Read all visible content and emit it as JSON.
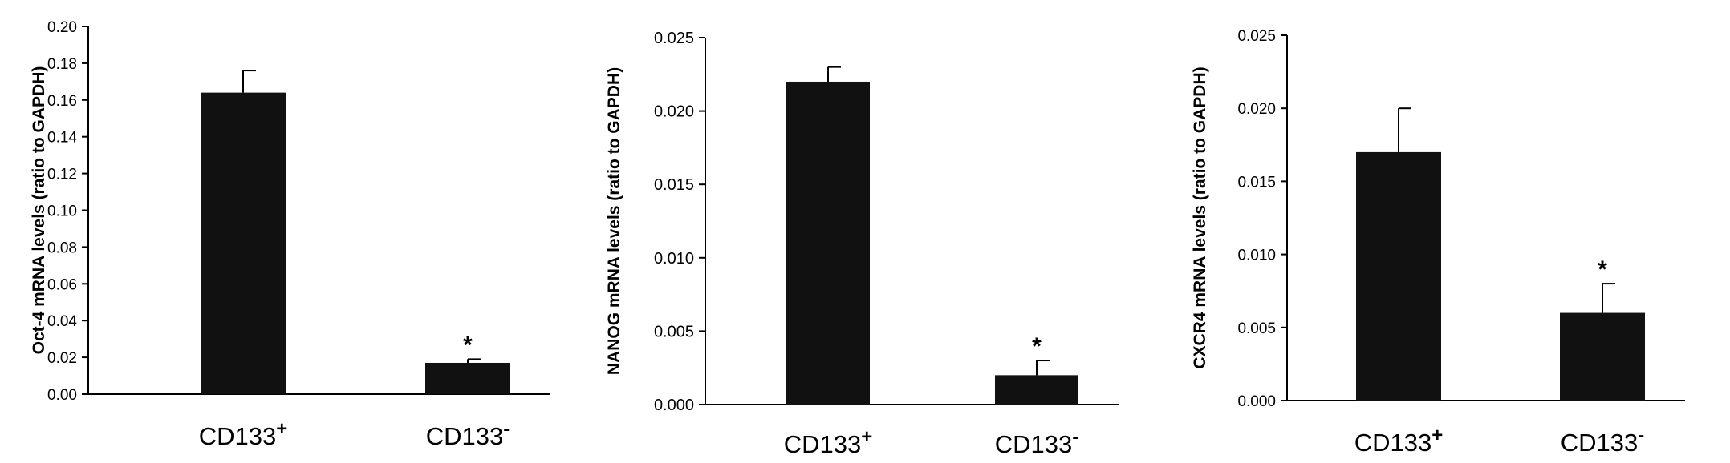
{
  "chart_data": [
    {
      "type": "bar",
      "ylabel": "Oct-4 mRNA levels  (ratio to GAPDH)",
      "ylim": [
        0,
        0.2
      ],
      "yticks": [
        "0.00",
        "0.02",
        "0.04",
        "0.06",
        "0.08",
        "0.10",
        "0.12",
        "0.14",
        "0.16",
        "0.18",
        "0.20"
      ],
      "categories": [
        {
          "base": "CD133",
          "sup": "+"
        },
        {
          "base": "CD133",
          "sup": "-"
        }
      ],
      "values": [
        0.164,
        0.017
      ],
      "errors": [
        0.012,
        0.002
      ],
      "annotations": [
        "",
        "*"
      ],
      "grid": false,
      "bar_color": "#111111"
    },
    {
      "type": "bar",
      "ylabel": "NANOG mRNA levels (ratio to GAPDH)",
      "ylim": [
        0,
        0.025
      ],
      "yticks": [
        "0.000",
        "0.005",
        "0.010",
        "0.015",
        "0.020",
        "0.025"
      ],
      "categories": [
        {
          "base": "CD133",
          "sup": "+"
        },
        {
          "base": "CD133",
          "sup": "-"
        }
      ],
      "values": [
        0.022,
        0.002
      ],
      "errors": [
        0.001,
        0.001
      ],
      "annotations": [
        "",
        "*"
      ],
      "grid": false,
      "bar_color": "#111111"
    },
    {
      "type": "bar",
      "ylabel": "CXCR4 mRNA levels (ratio to GAPDH)",
      "ylim": [
        0,
        0.025
      ],
      "yticks": [
        "0.000",
        "0.005",
        "0.010",
        "0.015",
        "0.020",
        "0.025"
      ],
      "categories": [
        {
          "base": "CD133",
          "sup": "+"
        },
        {
          "base": "CD133",
          "sup": "-"
        }
      ],
      "values": [
        0.017,
        0.006
      ],
      "errors": [
        0.003,
        0.002
      ],
      "annotations": [
        "",
        "*"
      ],
      "grid": false,
      "bar_color": "#111111"
    }
  ]
}
